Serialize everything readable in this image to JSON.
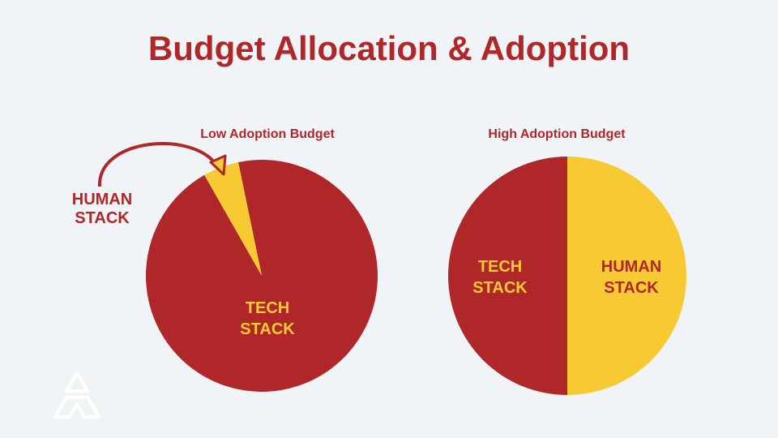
{
  "title": "Budget Allocation & Adoption",
  "colors": {
    "tech": "#b0272a",
    "human": "#f7c933",
    "background": "#f0f4f7",
    "logo": "#ffffff"
  },
  "logo": {
    "icon": "triangle-logo-icon"
  },
  "chart_data": [
    {
      "type": "pie",
      "title": "Low Adoption Budget",
      "categories": [
        "TECH STACK",
        "HUMAN STACK"
      ],
      "values": [
        95,
        5
      ],
      "labels": {
        "tech": [
          "TECH",
          "STACK"
        ],
        "human": [
          "HUMAN",
          "STACK"
        ]
      },
      "annotation": "arrow from HUMAN STACK label to slice"
    },
    {
      "type": "pie",
      "title": "High Adoption Budget",
      "categories": [
        "TECH STACK",
        "HUMAN STACK"
      ],
      "values": [
        50,
        50
      ],
      "labels": {
        "tech": [
          "TECH",
          "STACK"
        ],
        "human": [
          "HUMAN",
          "STACK"
        ]
      }
    }
  ]
}
